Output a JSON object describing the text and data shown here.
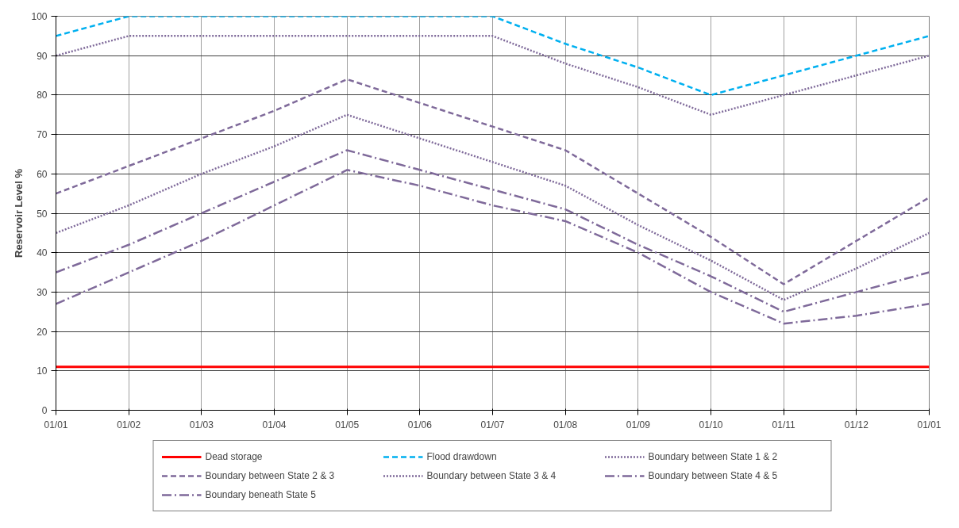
{
  "chart_data": {
    "type": "line",
    "ylabel": "Reservoir Level %",
    "categories": [
      "01/01",
      "01/02",
      "01/03",
      "01/04",
      "01/05",
      "01/06",
      "01/07",
      "01/08",
      "01/09",
      "01/10",
      "01/11",
      "01/12",
      "01/01"
    ],
    "ylim": [
      0,
      100
    ],
    "yticks": [
      0,
      10,
      20,
      30,
      40,
      50,
      60,
      70,
      80,
      90,
      100
    ],
    "grid": true,
    "legend": "bottom",
    "marker": "none",
    "series": [
      {
        "name": "Dead storage",
        "color": "#ff0000",
        "line_style": "solid",
        "values": [
          11,
          11,
          11,
          11,
          11,
          11,
          11,
          11,
          11,
          11,
          11,
          11,
          11
        ]
      },
      {
        "name": "Flood drawdown",
        "color": "#00b0f0",
        "line_style": "dashed",
        "values": [
          95,
          100,
          100,
          100,
          100,
          100,
          100,
          93,
          87,
          80,
          85,
          90,
          95
        ]
      },
      {
        "name": "Boundary between State 1 & 2",
        "color": "#7f6a9a",
        "line_style": "dotted",
        "values": [
          90,
          95,
          95,
          95,
          95,
          95,
          95,
          88,
          82,
          75,
          80,
          85,
          90
        ]
      },
      {
        "name": "Boundary between State 2 & 3",
        "color": "#7f6a9a",
        "line_style": "dashed",
        "values": [
          55,
          62,
          69,
          76,
          84,
          78,
          72,
          66,
          55,
          44,
          32,
          43,
          54
        ]
      },
      {
        "name": "Boundary between State 3 & 4",
        "color": "#7f6a9a",
        "line_style": "dotted",
        "values": [
          45,
          52,
          60,
          67,
          75,
          69,
          63,
          57,
          47,
          38,
          28,
          36,
          45
        ]
      },
      {
        "name": "Boundary between State 4 & 5",
        "color": "#7f6a9a",
        "line_style": "dashdot",
        "values": [
          35,
          42,
          50,
          58,
          66,
          61,
          56,
          51,
          42,
          34,
          25,
          30,
          35
        ]
      },
      {
        "name": "Boundary beneath State 5",
        "color": "#7f6a9a",
        "line_style": "dashdot",
        "values": [
          27,
          35,
          43,
          52,
          61,
          57,
          52,
          48,
          40,
          30,
          22,
          24,
          27
        ]
      }
    ]
  }
}
